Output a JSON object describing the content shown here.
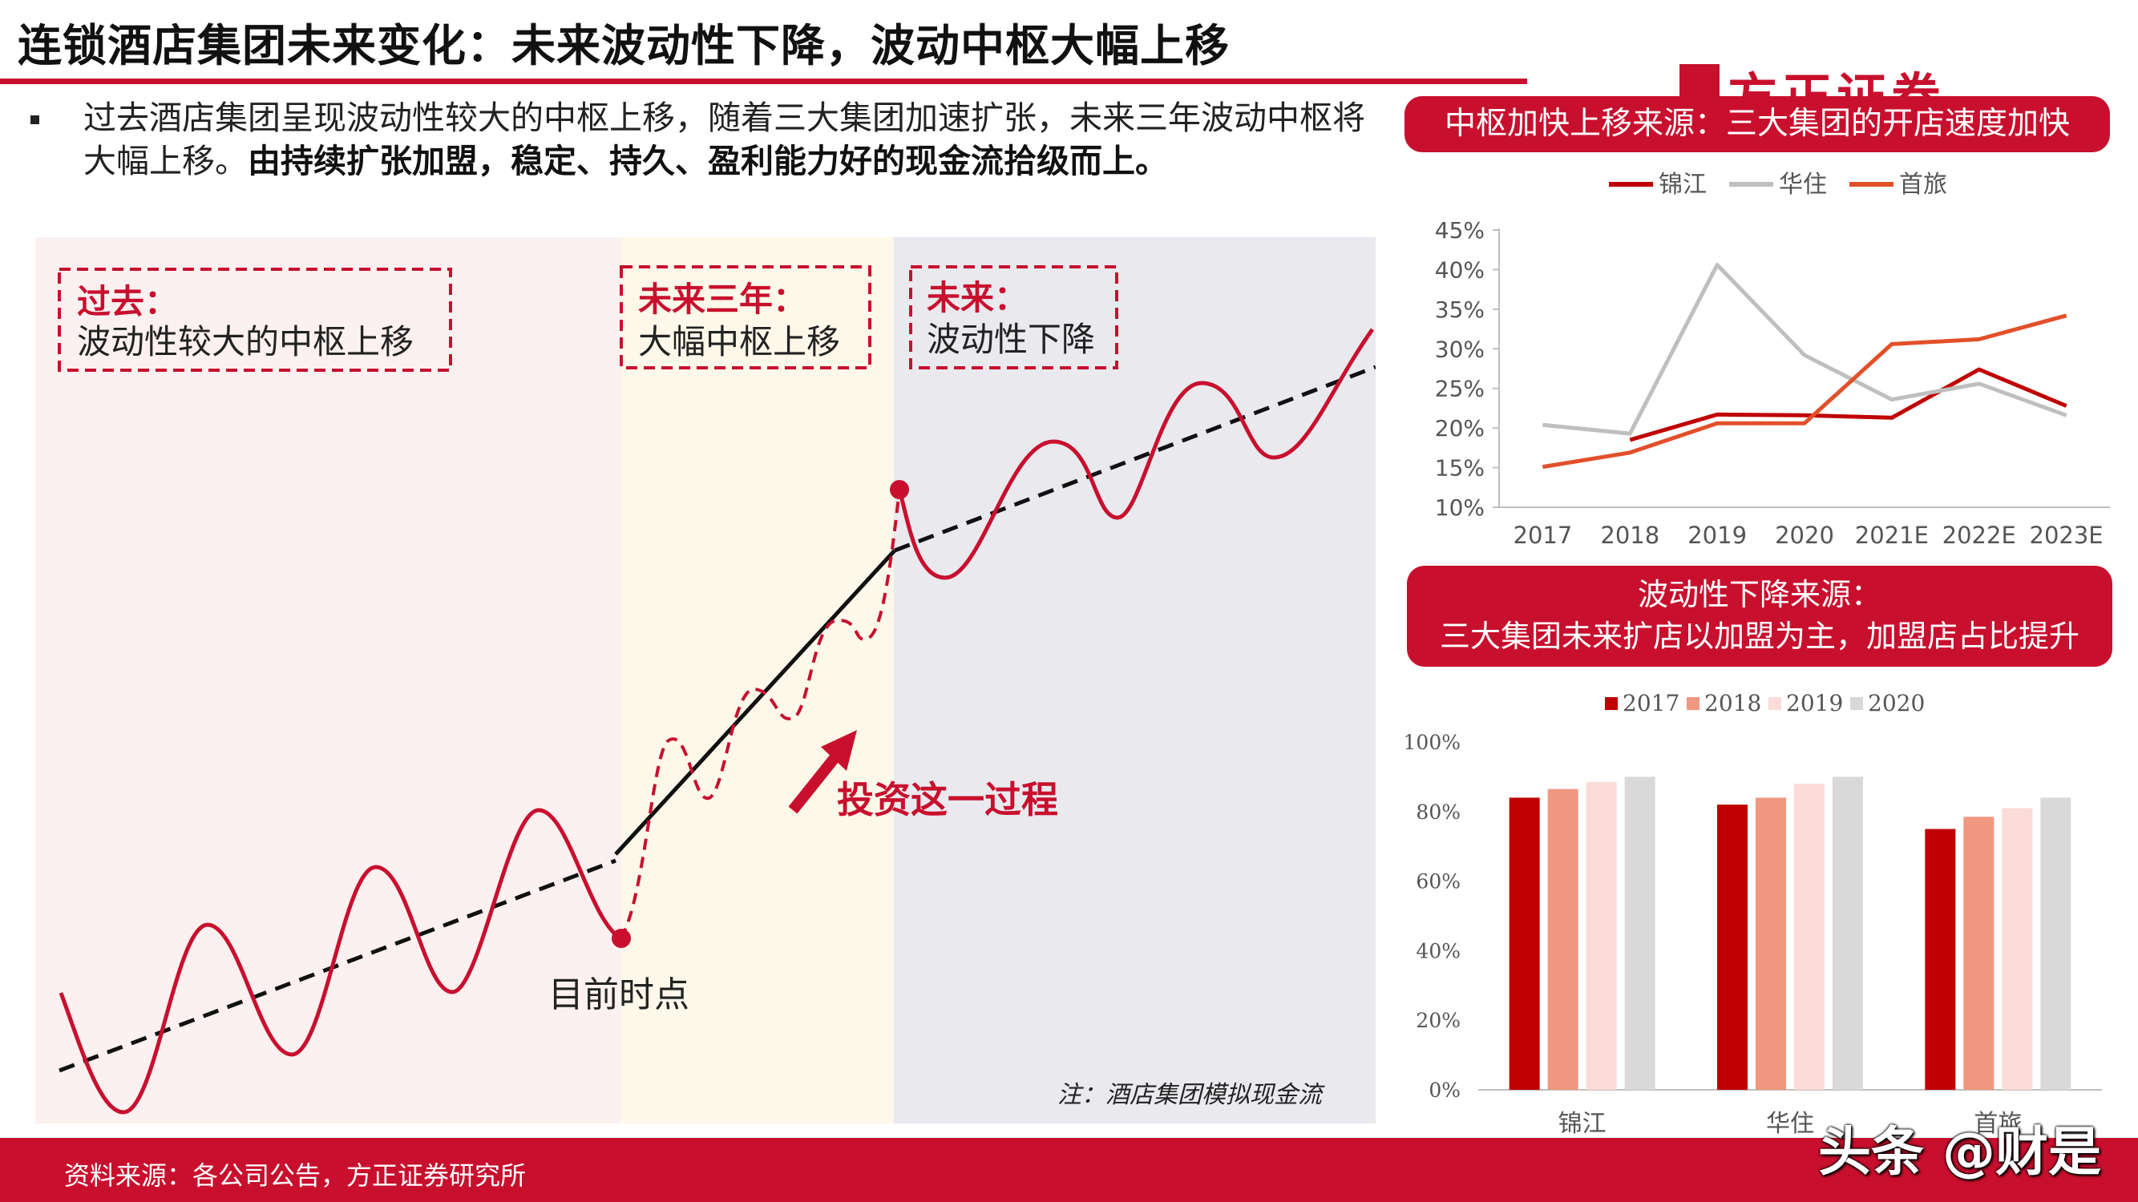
{
  "header": {
    "title": "连锁酒店集团未来变化：未来波动性下降，波动中枢大幅上移",
    "logo_text": "方正证券",
    "accent": "#c8102e"
  },
  "bullet": {
    "text_plain": "过去酒店集团呈现波动性较大的中枢上移，随着三大集团加速扩张，未来三年波动中枢将大幅上移。",
    "text_bold": "由持续扩张加盟，稳定、持久、盈利能力好的现金流拾级而上。"
  },
  "main_chart": {
    "zones": [
      {
        "title": "过去：",
        "subtitle": "波动性较大的中枢上移",
        "bg": "#fcf0f0"
      },
      {
        "title": "未来三年：",
        "subtitle": "大幅中枢上移",
        "bg": "#fdf8e9"
      },
      {
        "title": "未来：",
        "subtitle": "波动性下降",
        "bg": "#e9e9ee"
      }
    ],
    "current_point_label": "目前时点",
    "arrow_label": "投资这一过程",
    "note": "注：酒店集团模拟现金流"
  },
  "right_panel": {
    "box1_text": "中枢加快上移来源：三大集团的开店速度加快",
    "box2_line1": "波动性下降来源：",
    "box2_line2": "三大集团未来扩店以加盟为主，加盟店占比提升"
  },
  "chart_data": [
    {
      "type": "line",
      "x": [
        "2017",
        "2018",
        "2019",
        "2020",
        "2021E",
        "2022E",
        "2023E"
      ],
      "y_ticks": [
        "10%",
        "15%",
        "20%",
        "25%",
        "30%",
        "35%",
        "40%",
        "45%"
      ],
      "ylim": [
        10,
        45
      ],
      "legend_position": "top",
      "series": [
        {
          "name": "锦江",
          "color": "#c00000",
          "values": [
            null,
            18.5,
            21.7,
            21.6,
            21.3,
            27.4,
            22.8
          ]
        },
        {
          "name": "华住",
          "color": "#bfbfbf",
          "values": [
            20.4,
            19.3,
            40.6,
            29.2,
            23.6,
            25.6,
            21.6
          ]
        },
        {
          "name": "首旅",
          "color": "#e2502a",
          "values": [
            15.1,
            16.9,
            20.6,
            20.6,
            30.6,
            31.2,
            34.2
          ]
        }
      ]
    },
    {
      "type": "bar",
      "categories": [
        "锦江",
        "华住",
        "首旅"
      ],
      "y_ticks": [
        "0%",
        "20%",
        "40%",
        "60%",
        "80%",
        "100%"
      ],
      "ylim": [
        0,
        100
      ],
      "legend_position": "top",
      "series": [
        {
          "name": "2017",
          "color": "#c00000",
          "values": [
            84,
            82,
            75
          ]
        },
        {
          "name": "2018",
          "color": "#f0977f",
          "values": [
            86.5,
            84,
            78.5
          ]
        },
        {
          "name": "2019",
          "color": "#fbdcd9",
          "values": [
            88.5,
            88,
            81
          ]
        },
        {
          "name": "2020",
          "color": "#d9d9d9",
          "values": [
            90,
            90,
            84
          ]
        }
      ]
    }
  ],
  "footer": {
    "source": "资料来源：各公司公告，方正证券研究所",
    "watermark": "头条 @财是"
  }
}
